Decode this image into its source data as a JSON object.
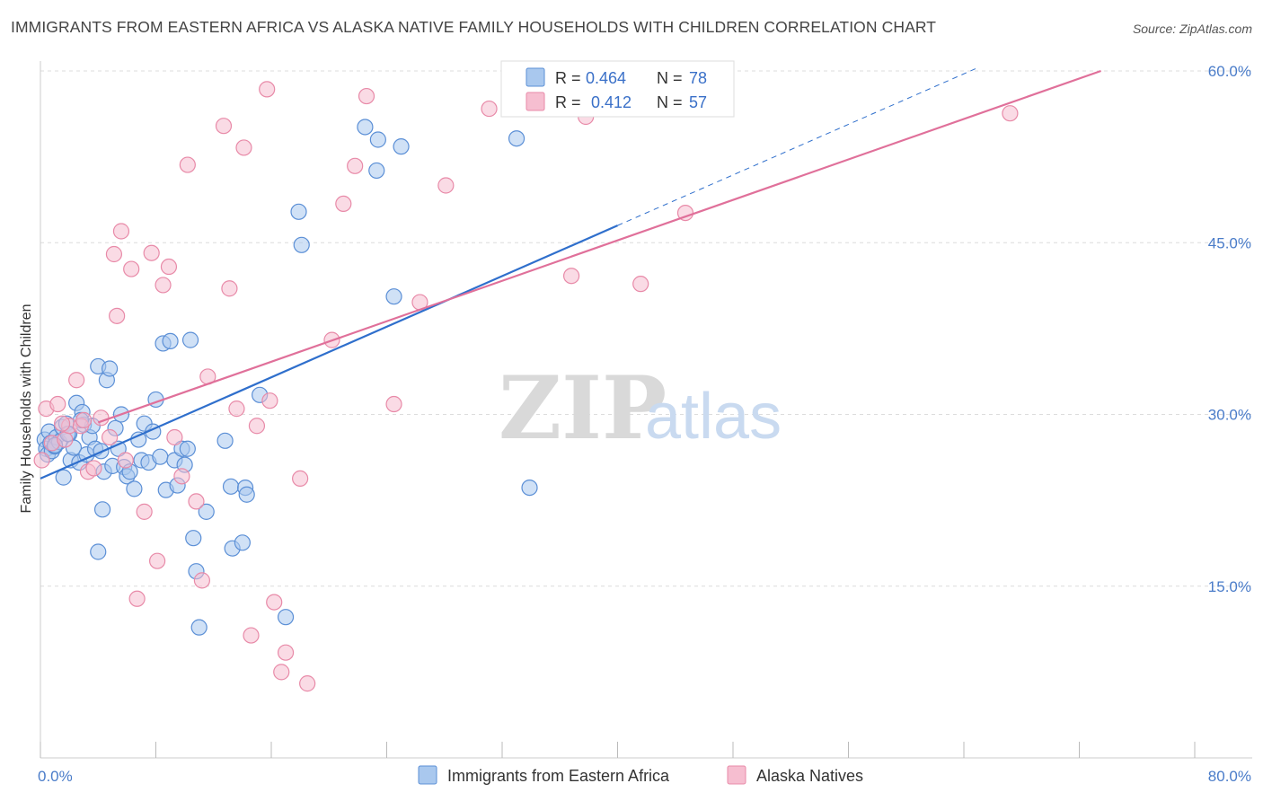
{
  "title": "IMMIGRANTS FROM EASTERN AFRICA VS ALASKA NATIVE FAMILY HOUSEHOLDS WITH CHILDREN CORRELATION CHART",
  "source": "Source: ZipAtlas.com",
  "watermark": {
    "zip": "ZIP",
    "atlas": "atlas"
  },
  "colors": {
    "blue_fill": "#a9c8ee",
    "blue_stroke": "#5b8fd6",
    "blue_line": "#2f6fcc",
    "pink_fill": "#f6bed0",
    "pink_stroke": "#e88aa8",
    "pink_line": "#e0709a",
    "grid": "#dcdcdc",
    "tick_text": "#4a7cc9"
  },
  "legend": {
    "series1": {
      "r_label": "R =",
      "r_value": "0.464",
      "n_label": "N =",
      "n_value": "78"
    },
    "series2": {
      "r_label": "R =",
      "r_value": "0.412",
      "n_label": "N =",
      "n_value": "57"
    }
  },
  "chart_data": {
    "type": "scatter",
    "title": "IMMIGRANTS FROM EASTERN AFRICA VS ALASKA NATIVE FAMILY HOUSEHOLDS WITH CHILDREN CORRELATION CHART",
    "xlabel": "",
    "ylabel": "Family Households with Children",
    "xlim": [
      0,
      80
    ],
    "ylim": [
      0,
      62
    ],
    "x_tick_labels": [
      {
        "value": 0,
        "label": "0.0%"
      },
      {
        "value": 80,
        "label": "80.0%"
      }
    ],
    "y_tick_labels": [
      {
        "value": 15,
        "label": "15.0%"
      },
      {
        "value": 30,
        "label": "30.0%"
      },
      {
        "value": 45,
        "label": "45.0%"
      },
      {
        "value": 60,
        "label": "60.0%"
      }
    ],
    "y_gridlines": [
      15,
      30,
      45,
      60
    ],
    "x_minor_ticks": [
      0,
      8,
      16,
      24,
      32,
      40,
      48,
      56,
      64,
      72,
      80
    ],
    "series": [
      {
        "name": "Immigrants from Eastern Africa",
        "color": "blue",
        "points": [
          [
            0.3,
            27.8
          ],
          [
            0.4,
            27.0
          ],
          [
            0.5,
            26.5
          ],
          [
            0.6,
            28.5
          ],
          [
            0.7,
            27.5
          ],
          [
            0.8,
            26.8
          ],
          [
            1.0,
            27.2
          ],
          [
            1.1,
            28.0
          ],
          [
            1.3,
            27.6
          ],
          [
            1.5,
            28.9
          ],
          [
            1.6,
            24.5
          ],
          [
            1.8,
            29.2
          ],
          [
            2.0,
            28.3
          ],
          [
            2.1,
            26.0
          ],
          [
            2.3,
            27.1
          ],
          [
            2.5,
            31.0
          ],
          [
            2.7,
            25.8
          ],
          [
            2.9,
            30.2
          ],
          [
            3.0,
            29.1
          ],
          [
            3.2,
            26.5
          ],
          [
            3.4,
            28.0
          ],
          [
            3.6,
            29.0
          ],
          [
            3.8,
            27.0
          ],
          [
            4.0,
            34.2
          ],
          [
            4.2,
            26.8
          ],
          [
            4.4,
            25.0
          ],
          [
            4.6,
            33.0
          ],
          [
            4.8,
            34.0
          ],
          [
            5.0,
            25.5
          ],
          [
            5.2,
            28.8
          ],
          [
            5.4,
            27.0
          ],
          [
            5.6,
            30.0
          ],
          [
            5.8,
            25.4
          ],
          [
            6.0,
            24.6
          ],
          [
            6.2,
            25.0
          ],
          [
            6.5,
            23.5
          ],
          [
            6.8,
            27.8
          ],
          [
            7.0,
            26.0
          ],
          [
            7.2,
            29.2
          ],
          [
            7.5,
            25.8
          ],
          [
            7.8,
            28.5
          ],
          [
            8.0,
            31.3
          ],
          [
            8.3,
            26.3
          ],
          [
            8.5,
            36.2
          ],
          [
            8.7,
            23.4
          ],
          [
            9.0,
            36.4
          ],
          [
            9.3,
            26.0
          ],
          [
            9.5,
            23.8
          ],
          [
            9.8,
            27.0
          ],
          [
            10.0,
            25.6
          ],
          [
            10.2,
            27.0
          ],
          [
            10.4,
            36.5
          ],
          [
            10.6,
            19.2
          ],
          [
            10.8,
            16.3
          ],
          [
            11.0,
            11.4
          ],
          [
            11.5,
            21.5
          ],
          [
            1.0,
            27.3
          ],
          [
            2.8,
            29.5
          ],
          [
            4.3,
            21.7
          ],
          [
            4.0,
            18.0
          ],
          [
            12.8,
            27.7
          ],
          [
            13.2,
            23.7
          ],
          [
            13.3,
            18.3
          ],
          [
            14.0,
            18.8
          ],
          [
            14.2,
            23.6
          ],
          [
            14.3,
            23.0
          ],
          [
            15.2,
            31.7
          ],
          [
            17.0,
            12.3
          ],
          [
            17.9,
            47.7
          ],
          [
            18.1,
            44.8
          ],
          [
            22.5,
            55.1
          ],
          [
            23.3,
            51.3
          ],
          [
            23.4,
            54.0
          ],
          [
            24.5,
            40.3
          ],
          [
            25.0,
            53.4
          ],
          [
            33.0,
            54.1
          ],
          [
            33.9,
            23.6
          ],
          [
            1.9,
            28.3
          ]
        ]
      },
      {
        "name": "Alaska Natives",
        "color": "pink",
        "points": [
          [
            0.1,
            26.0
          ],
          [
            0.4,
            30.5
          ],
          [
            0.8,
            27.5
          ],
          [
            1.2,
            30.9
          ],
          [
            1.7,
            27.8
          ],
          [
            2.0,
            29.0
          ],
          [
            2.5,
            33.0
          ],
          [
            2.8,
            29.0
          ],
          [
            3.3,
            25.0
          ],
          [
            3.7,
            25.3
          ],
          [
            4.2,
            29.7
          ],
          [
            4.8,
            28.0
          ],
          [
            5.1,
            44.0
          ],
          [
            5.3,
            38.6
          ],
          [
            5.6,
            46.0
          ],
          [
            5.9,
            26.0
          ],
          [
            6.3,
            42.7
          ],
          [
            6.7,
            13.9
          ],
          [
            7.2,
            21.5
          ],
          [
            7.7,
            44.1
          ],
          [
            8.1,
            17.2
          ],
          [
            8.5,
            41.3
          ],
          [
            8.9,
            42.9
          ],
          [
            9.3,
            28.0
          ],
          [
            9.8,
            24.6
          ],
          [
            10.2,
            51.8
          ],
          [
            10.8,
            22.4
          ],
          [
            11.2,
            15.5
          ],
          [
            11.6,
            33.3
          ],
          [
            12.7,
            55.2
          ],
          [
            13.1,
            41.0
          ],
          [
            13.6,
            30.5
          ],
          [
            14.1,
            53.3
          ],
          [
            14.6,
            10.7
          ],
          [
            15.0,
            29.0
          ],
          [
            15.7,
            58.4
          ],
          [
            15.9,
            31.2
          ],
          [
            16.2,
            13.6
          ],
          [
            16.7,
            7.5
          ],
          [
            17.0,
            9.2
          ],
          [
            18.0,
            24.4
          ],
          [
            18.5,
            6.5
          ],
          [
            20.2,
            36.5
          ],
          [
            21.0,
            48.4
          ],
          [
            21.8,
            51.7
          ],
          [
            22.6,
            57.8
          ],
          [
            24.5,
            30.9
          ],
          [
            26.3,
            39.8
          ],
          [
            28.1,
            50.0
          ],
          [
            31.1,
            56.7
          ],
          [
            36.8,
            42.1
          ],
          [
            37.8,
            56.0
          ],
          [
            41.6,
            41.4
          ],
          [
            44.7,
            47.6
          ],
          [
            67.2,
            56.3
          ],
          [
            1.5,
            29.2
          ],
          [
            3.0,
            29.5
          ]
        ]
      }
    ],
    "trendlines": [
      {
        "series": "Immigrants from Eastern Africa",
        "style": "solid",
        "from": [
          0,
          24.4
        ],
        "to": [
          40,
          46.5
        ]
      },
      {
        "series": "Immigrants from Eastern Africa",
        "style": "dashed",
        "from": [
          40,
          46.5
        ],
        "to": [
          65,
          60.3
        ]
      },
      {
        "series": "Alaska Natives",
        "style": "solid",
        "from": [
          4,
          29.3
        ],
        "to": [
          73.5,
          60.0
        ]
      }
    ]
  },
  "bottom_legend": [
    {
      "label": "Immigrants from Eastern Africa",
      "color": "blue"
    },
    {
      "label": "Alaska Natives",
      "color": "pink"
    }
  ]
}
